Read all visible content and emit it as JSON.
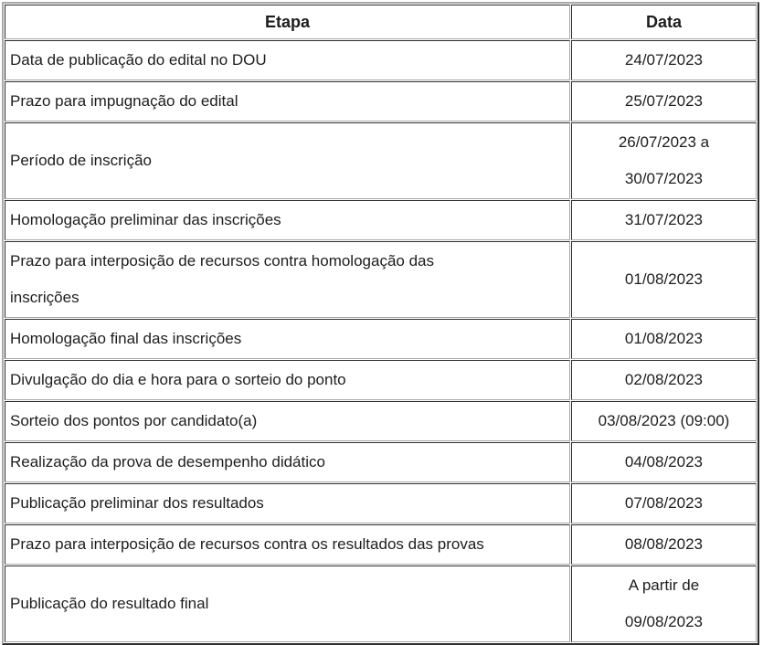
{
  "header": {
    "etapa": "Etapa",
    "data": "Data"
  },
  "rows": [
    {
      "etapa": [
        "Data de publicação do edital no DOU"
      ],
      "data": [
        "24/07/2023"
      ]
    },
    {
      "etapa": [
        "Prazo para impugnação do edital"
      ],
      "data": [
        "25/07/2023"
      ]
    },
    {
      "etapa": [
        "Período de inscrição"
      ],
      "data": [
        "26/07/2023 a",
        "30/07/2023"
      ]
    },
    {
      "etapa": [
        "Homologação preliminar das inscrições"
      ],
      "data": [
        "31/07/2023"
      ]
    },
    {
      "etapa": [
        "Prazo para interposição de recursos contra homologação das",
        "inscrições"
      ],
      "data": [
        "01/08/2023"
      ]
    },
    {
      "etapa": [
        "Homologação final das inscrições"
      ],
      "data": [
        "01/08/2023"
      ]
    },
    {
      "etapa": [
        "Divulgação do dia e hora para o sorteio do ponto"
      ],
      "data": [
        "02/08/2023"
      ]
    },
    {
      "etapa": [
        "Sorteio dos pontos por candidato(a)"
      ],
      "data": [
        "03/08/2023 (09:00)"
      ]
    },
    {
      "etapa": [
        "Realização da prova de desempenho didático"
      ],
      "data": [
        "04/08/2023"
      ]
    },
    {
      "etapa": [
        "Publicação preliminar dos resultados"
      ],
      "data": [
        "07/08/2023"
      ]
    },
    {
      "etapa": [
        "Prazo para interposição de recursos contra os resultados das provas"
      ],
      "data": [
        "08/08/2023"
      ]
    },
    {
      "etapa": [
        "Publicação do resultado final"
      ],
      "data": [
        "A partir de",
        "09/08/2023"
      ]
    }
  ],
  "colors": {
    "text": "#1d1d1d",
    "border_dark": "#2f2f2f",
    "border_light": "#a9a9a9",
    "background": "#ffffff"
  }
}
